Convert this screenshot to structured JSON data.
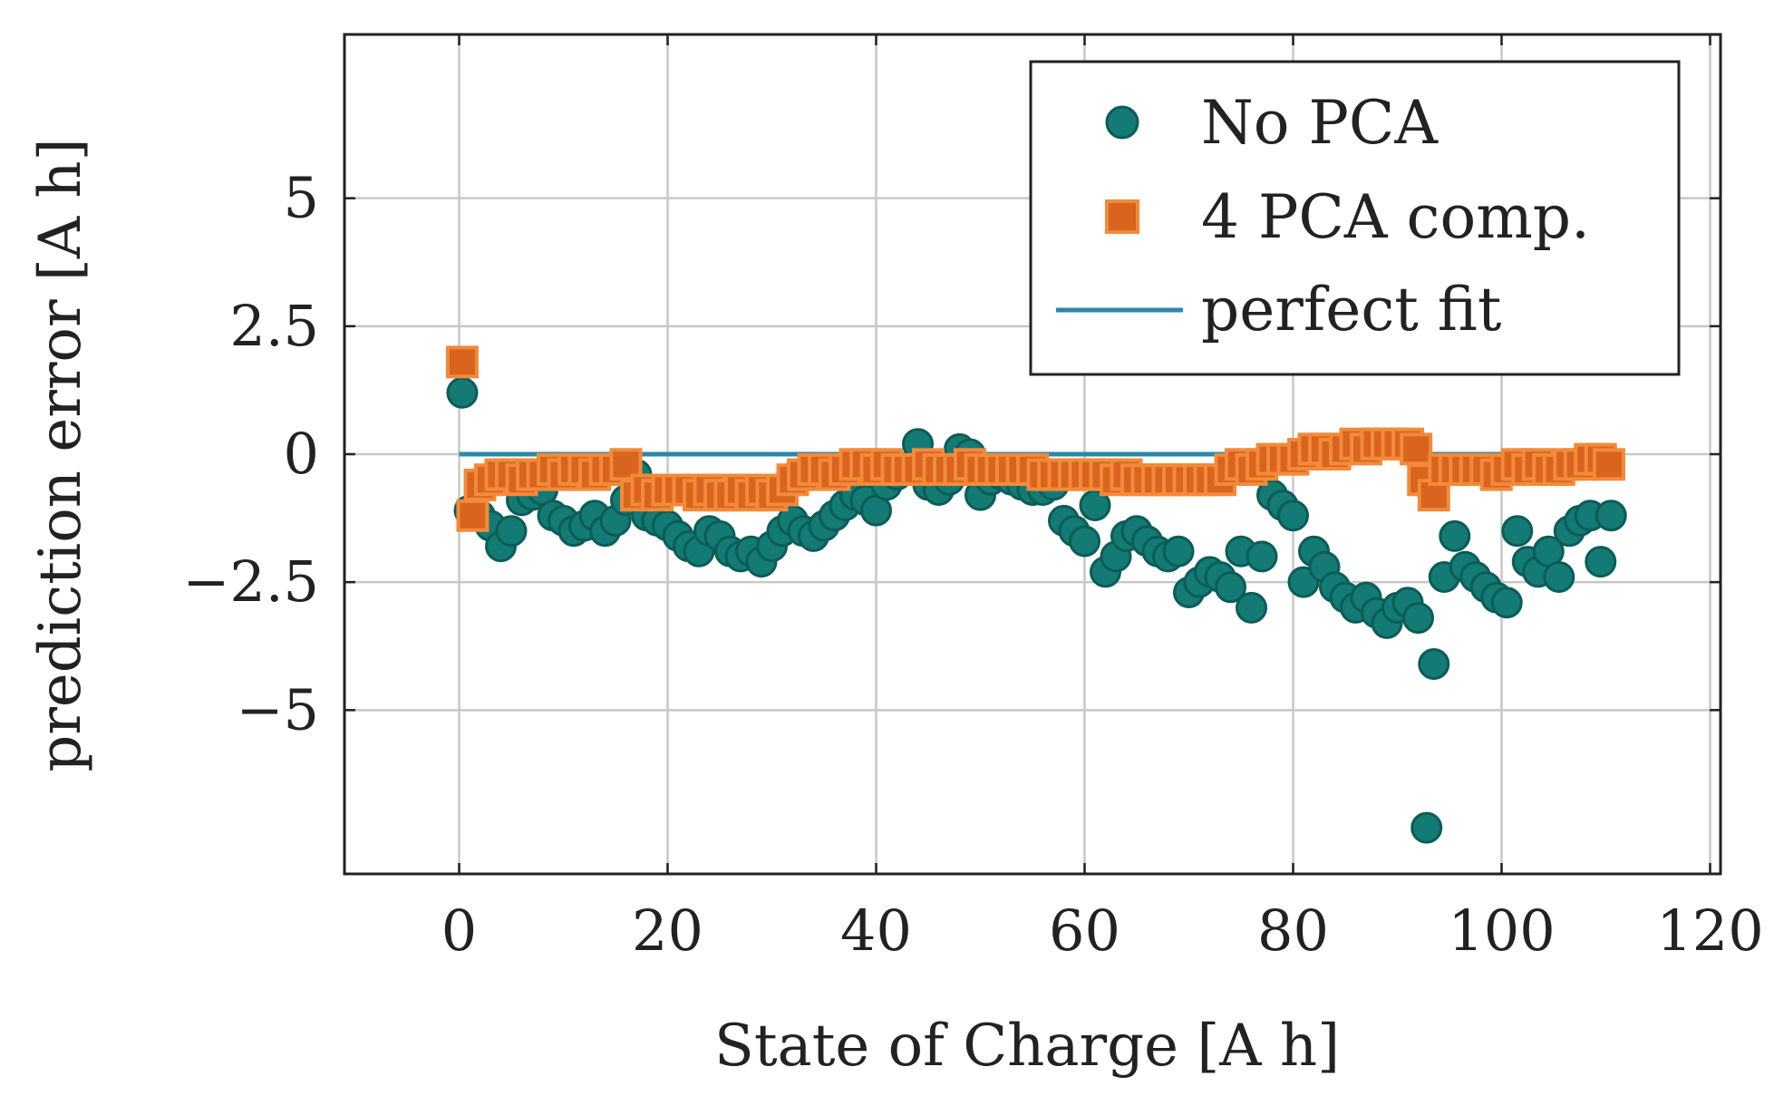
{
  "chart_data": {
    "type": "scatter",
    "title": "",
    "xlabel": "State of Charge [A h]",
    "ylabel": "prediction error [A h]",
    "xlim": [
      -11,
      121
    ],
    "ylim": [
      -8.2,
      8.2
    ],
    "xticks": [
      0,
      20,
      40,
      60,
      80,
      100,
      120
    ],
    "xtick_labels": [
      "0",
      "20",
      "40",
      "60",
      "80",
      "100",
      "120"
    ],
    "yticks": [
      5,
      2.5,
      0,
      -2.5,
      -5
    ],
    "ytick_labels": [
      "5",
      "2.5",
      "0",
      "−2.5",
      "−5"
    ],
    "grid": true,
    "legend_position": "top-right",
    "colors": {
      "no_pca": "#137a74",
      "no_pca_edge": "#0b5c57",
      "pca4": "#d8641e",
      "pca4_edge": "#f28a3a",
      "perfect_fit": "#2b88a8",
      "grid": "#c8c8c8",
      "axis": "#222222"
    },
    "series": [
      {
        "name": "No PCA",
        "marker": "circle",
        "x": [
          0.3,
          1.0,
          2.0,
          3.0,
          4.0,
          5.0,
          6.0,
          7.0,
          8.0,
          9.0,
          10.0,
          11.0,
          12.0,
          13.0,
          14.0,
          15.0,
          16.0,
          17.0,
          18.0,
          19.0,
          20.0,
          21.0,
          22.0,
          23.0,
          24.0,
          25.0,
          26.0,
          27.0,
          28.0,
          29.0,
          30.0,
          31.0,
          32.0,
          33.0,
          34.0,
          35.0,
          36.0,
          37.0,
          38.0,
          39.0,
          40.0,
          41.0,
          42.0,
          43.0,
          44.0,
          45.0,
          46.0,
          47.0,
          48.0,
          49.0,
          50.0,
          51.0,
          52.0,
          53.0,
          54.0,
          55.0,
          56.0,
          57.0,
          58.0,
          59.0,
          60.0,
          61.0,
          62.0,
          63.0,
          64.0,
          65.0,
          66.0,
          67.0,
          68.0,
          69.0,
          70.0,
          71.0,
          72.0,
          73.0,
          74.0,
          75.0,
          76.0,
          77.0,
          78.0,
          79.0,
          80.0,
          81.0,
          82.0,
          83.0,
          84.0,
          85.0,
          86.0,
          87.0,
          88.0,
          89.0,
          90.0,
          91.0,
          92.0,
          92.8,
          93.5,
          94.5,
          95.5,
          96.5,
          97.5,
          98.5,
          99.5,
          100.5,
          101.5,
          102.5,
          103.5,
          104.5,
          105.5,
          106.5,
          107.5,
          108.5,
          109.5,
          110.5
        ],
        "y": [
          1.2,
          -1.1,
          -1.2,
          -1.4,
          -1.8,
          -1.5,
          -0.9,
          -0.8,
          -0.7,
          -1.2,
          -1.3,
          -1.5,
          -1.4,
          -1.2,
          -1.5,
          -1.3,
          -0.9,
          -0.4,
          -1.2,
          -1.3,
          -1.4,
          -1.6,
          -1.8,
          -1.9,
          -1.5,
          -1.6,
          -1.9,
          -2.0,
          -1.9,
          -2.1,
          -1.8,
          -1.5,
          -1.3,
          -1.5,
          -1.6,
          -1.4,
          -1.2,
          -1.0,
          -0.8,
          -0.9,
          -1.1,
          -0.6,
          -0.4,
          -0.3,
          0.2,
          -0.6,
          -0.7,
          -0.5,
          0.1,
          0.0,
          -0.8,
          -0.5,
          -0.4,
          -0.5,
          -0.6,
          -0.7,
          -0.7,
          -0.6,
          -1.3,
          -1.5,
          -1.7,
          -1.0,
          -2.3,
          -2.0,
          -1.6,
          -1.5,
          -1.7,
          -1.9,
          -2.0,
          -1.9,
          -2.7,
          -2.5,
          -2.3,
          -2.4,
          -2.6,
          -1.9,
          -3.0,
          -2.0,
          -0.8,
          -1.0,
          -1.2,
          -2.5,
          -1.9,
          -2.2,
          -2.6,
          -2.8,
          -3.0,
          -2.8,
          -3.1,
          -3.3,
          -3.0,
          -2.9,
          -3.2,
          -7.3,
          -4.1,
          -2.4,
          -1.6,
          -2.2,
          -2.4,
          -2.6,
          -2.8,
          -2.9,
          -1.5,
          -2.1,
          -2.3,
          -1.9,
          -2.4,
          -1.5,
          -1.3,
          -1.2,
          -2.1,
          -1.2
        ]
      },
      {
        "name": "4 PCA comp.",
        "marker": "square",
        "x": [
          0.3,
          1.3,
          2.0,
          3.0,
          4.0,
          5.0,
          6.0,
          7.0,
          8.0,
          9.0,
          10.0,
          11.0,
          12.0,
          13.0,
          14.0,
          15.0,
          16.0,
          17.0,
          18.0,
          19.0,
          20.0,
          21.0,
          22.0,
          23.0,
          24.0,
          25.0,
          26.0,
          27.0,
          28.0,
          29.0,
          30.0,
          31.0,
          32.0,
          33.0,
          34.0,
          35.0,
          36.0,
          37.0,
          38.0,
          39.0,
          40.0,
          41.0,
          42.0,
          43.0,
          44.0,
          45.0,
          46.0,
          47.0,
          48.0,
          49.0,
          50.0,
          51.0,
          52.0,
          53.0,
          54.0,
          55.0,
          56.0,
          57.0,
          58.0,
          59.0,
          60.0,
          61.0,
          62.0,
          63.0,
          64.0,
          65.0,
          66.0,
          67.0,
          68.0,
          69.0,
          70.0,
          71.0,
          72.0,
          73.0,
          74.0,
          75.0,
          76.0,
          77.0,
          78.0,
          79.0,
          80.0,
          81.0,
          82.0,
          83.0,
          84.0,
          85.0,
          86.0,
          87.0,
          88.0,
          89.0,
          90.0,
          91.0,
          91.8,
          92.5,
          93.5,
          94.5,
          95.5,
          96.5,
          97.5,
          98.5,
          99.5,
          100.5,
          101.5,
          102.5,
          103.5,
          104.5,
          105.5,
          106.5,
          107.5,
          108.5,
          109.5,
          110.3
        ],
        "y": [
          1.8,
          -1.2,
          -0.6,
          -0.5,
          -0.4,
          -0.4,
          -0.5,
          -0.4,
          -0.4,
          -0.3,
          -0.4,
          -0.3,
          -0.3,
          -0.4,
          -0.3,
          -0.3,
          -0.2,
          -0.8,
          -0.7,
          -0.8,
          -0.7,
          -0.7,
          -0.7,
          -0.8,
          -0.7,
          -0.8,
          -0.8,
          -0.7,
          -0.8,
          -0.7,
          -0.8,
          -0.7,
          -0.5,
          -0.4,
          -0.3,
          -0.3,
          -0.4,
          -0.3,
          -0.2,
          -0.2,
          -0.3,
          -0.2,
          -0.3,
          -0.3,
          -0.3,
          -0.2,
          -0.3,
          -0.3,
          -0.3,
          -0.2,
          -0.3,
          -0.3,
          -0.3,
          -0.3,
          -0.3,
          -0.3,
          -0.4,
          -0.4,
          -0.4,
          -0.4,
          -0.4,
          -0.4,
          -0.4,
          -0.5,
          -0.4,
          -0.5,
          -0.5,
          -0.5,
          -0.5,
          -0.5,
          -0.5,
          -0.5,
          -0.5,
          -0.5,
          -0.3,
          -0.2,
          -0.3,
          -0.2,
          -0.1,
          -0.1,
          -0.1,
          0.0,
          0.1,
          0.1,
          0.0,
          0.1,
          0.2,
          0.1,
          0.2,
          0.2,
          0.2,
          0.2,
          0.1,
          -0.5,
          -0.8,
          -0.3,
          -0.3,
          -0.3,
          -0.3,
          -0.3,
          -0.4,
          -0.3,
          -0.2,
          -0.3,
          -0.2,
          -0.3,
          -0.3,
          -0.2,
          -0.2,
          -0.1,
          -0.1,
          -0.2
        ]
      },
      {
        "name": "perfect fit",
        "marker": "line",
        "x": [
          0.0,
          110.5
        ],
        "y": [
          0,
          0
        ]
      }
    ]
  }
}
